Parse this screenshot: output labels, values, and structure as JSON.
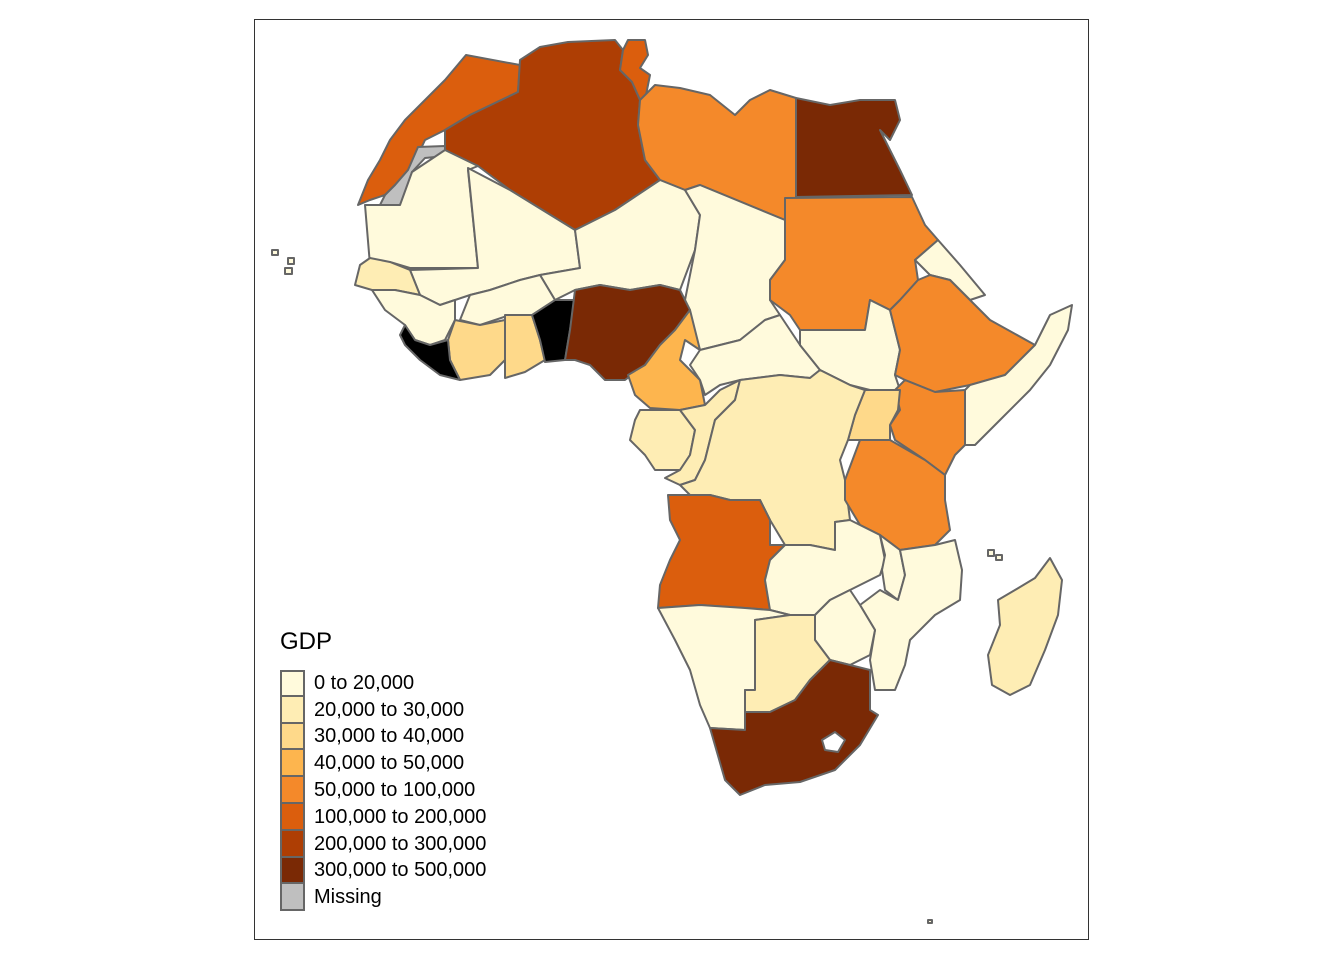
{
  "legend": {
    "title": "GDP",
    "items": [
      {
        "label": "0 to 20,000",
        "color": "#FFFADC"
      },
      {
        "label": "20,000 to 30,000",
        "color": "#FEEDB4"
      },
      {
        "label": "30,000 to 40,000",
        "color": "#FED98A"
      },
      {
        "label": "40,000 to 50,000",
        "color": "#FDB54E"
      },
      {
        "label": "50,000 to 100,000",
        "color": "#F4892A"
      },
      {
        "label": "100,000 to 200,000",
        "color": "#DB5E0D"
      },
      {
        "label": "200,000 to 300,000",
        "color": "#AE3E04"
      },
      {
        "label": "300,000 to 500,000",
        "color": "#7A2905"
      },
      {
        "label": "Missing",
        "color": "#BFBFBF"
      }
    ]
  },
  "countries": [
    {
      "name": "Morocco",
      "class": 5
    },
    {
      "name": "Western Sahara",
      "class": 8
    },
    {
      "name": "Algeria",
      "class": 6
    },
    {
      "name": "Tunisia",
      "class": 5
    },
    {
      "name": "Libya",
      "class": 4
    },
    {
      "name": "Egypt",
      "class": 7
    },
    {
      "name": "Mauritania",
      "class": 0
    },
    {
      "name": "Mali",
      "class": 0
    },
    {
      "name": "Niger",
      "class": 0
    },
    {
      "name": "Chad",
      "class": 0
    },
    {
      "name": "Sudan",
      "class": 4
    },
    {
      "name": "Senegal",
      "class": 1
    },
    {
      "name": "Guinea",
      "class": 0
    },
    {
      "name": "Burkina Faso",
      "class": 0
    },
    {
      "name": "Cote d'Ivoire",
      "class": 2
    },
    {
      "name": "Ghana",
      "class": 2
    },
    {
      "name": "Nigeria",
      "class": 7
    },
    {
      "name": "Cameroon",
      "class": 3
    },
    {
      "name": "Central African Republic",
      "class": 0
    },
    {
      "name": "South Sudan",
      "class": 0
    },
    {
      "name": "Ethiopia",
      "class": 4
    },
    {
      "name": "Somalia",
      "class": 0
    },
    {
      "name": "Kenya",
      "class": 4
    },
    {
      "name": "Uganda",
      "class": 2
    },
    {
      "name": "Congo",
      "class": 1
    },
    {
      "name": "DR Congo",
      "class": 1
    },
    {
      "name": "Gabon",
      "class": 1
    },
    {
      "name": "Tanzania",
      "class": 4
    },
    {
      "name": "Angola",
      "class": 5
    },
    {
      "name": "Zambia",
      "class": 0
    },
    {
      "name": "Mozambique",
      "class": 0
    },
    {
      "name": "Zimbabwe",
      "class": 0
    },
    {
      "name": "Namibia",
      "class": 0
    },
    {
      "name": "Botswana",
      "class": 1
    },
    {
      "name": "South Africa",
      "class": 7
    },
    {
      "name": "Madagascar",
      "class": 1
    },
    {
      "name": "Eritrea",
      "class": 0
    },
    {
      "name": "Malawi",
      "class": 0
    }
  ]
}
